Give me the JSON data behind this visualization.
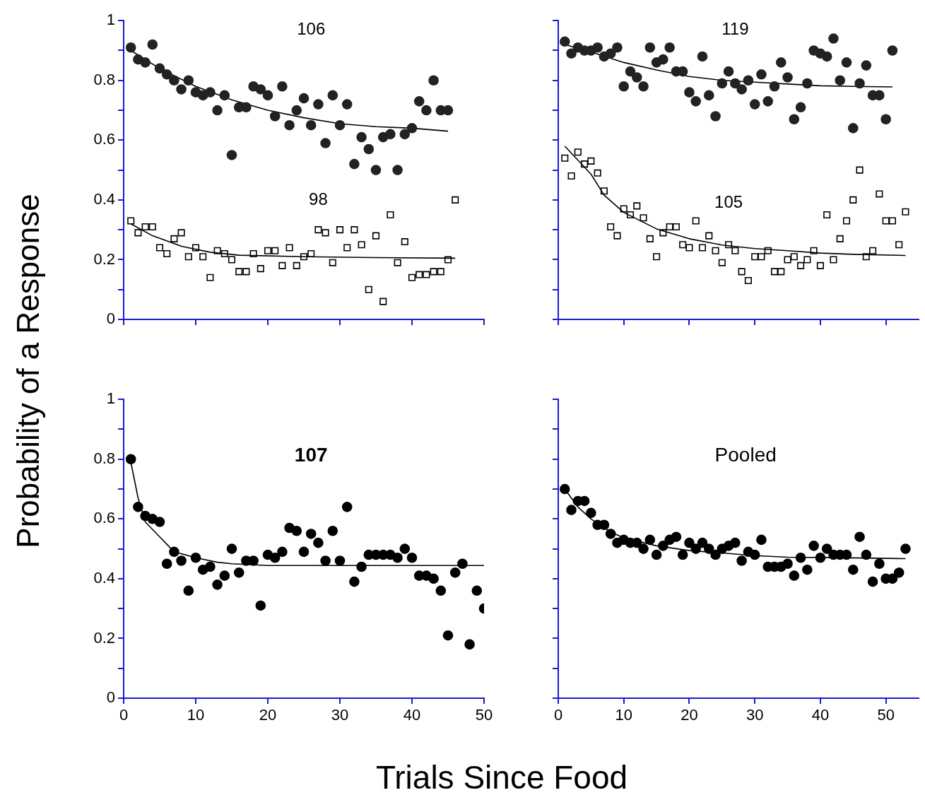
{
  "chart_data": [
    {
      "type": "scatter",
      "annotations": [
        "106",
        "98"
      ],
      "xlim": [
        0,
        50
      ],
      "ylim": [
        0,
        1
      ],
      "xticks": [
        0,
        10,
        20,
        30,
        40,
        50
      ],
      "yticks": [
        0,
        {
          "value": 0.1,
          "label": null
        },
        0.2,
        {
          "value": 0.3,
          "label": null
        },
        0.4,
        {
          "value": 0.5,
          "label": null
        },
        0.6,
        {
          "value": 0.7,
          "label": null
        },
        0.8,
        {
          "value": 0.9,
          "label": null
        },
        1
      ],
      "tick_labels": "y",
      "series": [
        {
          "marker": "circle",
          "color": "#222222",
          "x": [
            1,
            2,
            3,
            4,
            5,
            6,
            7,
            8,
            9,
            10,
            11,
            12,
            13,
            14,
            15,
            16,
            17,
            18,
            19,
            20,
            21,
            22,
            23,
            24,
            25,
            26,
            27,
            28,
            29,
            30,
            31,
            32,
            33,
            34,
            35,
            36,
            37,
            38,
            39,
            40,
            41,
            42,
            43,
            44,
            45
          ],
          "values": [
            0.91,
            0.87,
            0.86,
            0.92,
            0.84,
            0.82,
            0.8,
            0.77,
            0.8,
            0.76,
            0.75,
            0.76,
            0.7,
            0.75,
            0.55,
            0.71,
            0.71,
            0.78,
            0.77,
            0.75,
            0.68,
            0.78,
            0.65,
            0.7,
            0.74,
            0.65,
            0.72,
            0.59,
            0.75,
            0.65,
            0.72,
            0.52,
            0.61,
            0.57,
            0.5,
            0.61,
            0.62,
            0.5,
            0.62,
            0.64,
            0.73,
            0.7,
            0.8,
            0.7,
            0.7
          ]
        },
        {
          "type": "line",
          "marker": "none",
          "color": "#000000",
          "x": [
            1,
            5,
            10,
            15,
            20,
            25,
            30,
            35,
            40,
            45
          ],
          "values": [
            0.9,
            0.84,
            0.78,
            0.735,
            0.7,
            0.675,
            0.655,
            0.645,
            0.64,
            0.63
          ]
        },
        {
          "marker": "square",
          "color": "#000000",
          "x": [
            1,
            2,
            3,
            4,
            5,
            6,
            7,
            8,
            9,
            10,
            11,
            12,
            13,
            14,
            15,
            16,
            17,
            18,
            19,
            20,
            21,
            22,
            23,
            24,
            25,
            26,
            27,
            28,
            29,
            30,
            31,
            32,
            33,
            34,
            35,
            36,
            37,
            38,
            39,
            40,
            41,
            42,
            43,
            44,
            45,
            46
          ],
          "values": [
            0.33,
            0.29,
            0.31,
            0.31,
            0.24,
            0.22,
            0.27,
            0.29,
            0.21,
            0.24,
            0.21,
            0.14,
            0.23,
            0.22,
            0.2,
            0.16,
            0.16,
            0.22,
            0.17,
            0.23,
            0.23,
            0.18,
            0.24,
            0.18,
            0.21,
            0.22,
            0.3,
            0.29,
            0.19,
            0.3,
            0.24,
            0.3,
            0.25,
            0.1,
            0.28,
            0.06,
            0.35,
            0.19,
            0.26,
            0.14,
            0.15,
            0.15,
            0.16,
            0.16,
            0.2,
            0.4
          ]
        },
        {
          "type": "line",
          "marker": "none",
          "color": "#000000",
          "x": [
            1,
            4,
            8,
            12,
            16,
            25,
            35,
            46
          ],
          "values": [
            0.32,
            0.28,
            0.245,
            0.225,
            0.215,
            0.21,
            0.207,
            0.205
          ]
        }
      ]
    },
    {
      "type": "scatter",
      "annotations": [
        "119",
        "105"
      ],
      "xlim": [
        0,
        55
      ],
      "ylim": [
        0,
        1
      ],
      "xticks": [
        0,
        10,
        20,
        30,
        40,
        50
      ],
      "yticks": [
        0,
        0.1,
        0.2,
        0.3,
        0.4,
        0.5,
        0.6,
        0.7,
        0.8,
        0.9,
        1
      ],
      "tick_labels": false,
      "series": [
        {
          "marker": "circle",
          "color": "#222222",
          "x": [
            1,
            2,
            3,
            4,
            5,
            6,
            7,
            8,
            9,
            10,
            11,
            12,
            13,
            14,
            15,
            16,
            17,
            18,
            19,
            20,
            21,
            22,
            23,
            24,
            25,
            26,
            27,
            28,
            29,
            30,
            31,
            32,
            33,
            34,
            35,
            36,
            37,
            38,
            39,
            40,
            41,
            42,
            43,
            44,
            45,
            46,
            47,
            48,
            49,
            50,
            51
          ],
          "values": [
            0.93,
            0.89,
            0.91,
            0.9,
            0.9,
            0.91,
            0.88,
            0.89,
            0.91,
            0.78,
            0.83,
            0.81,
            0.78,
            0.91,
            0.86,
            0.87,
            0.91,
            0.83,
            0.83,
            0.76,
            0.73,
            0.88,
            0.75,
            0.68,
            0.79,
            0.83,
            0.79,
            0.77,
            0.8,
            0.72,
            0.82,
            0.73,
            0.78,
            0.86,
            0.81,
            0.67,
            0.71,
            0.79,
            0.9,
            0.89,
            0.88,
            0.94,
            0.8,
            0.86,
            0.64,
            0.79,
            0.85,
            0.75,
            0.75,
            0.67,
            0.9
          ]
        },
        {
          "type": "line",
          "marker": "none",
          "color": "#000000",
          "x": [
            1,
            5,
            10,
            15,
            20,
            25,
            30,
            35,
            40,
            45,
            51
          ],
          "values": [
            0.92,
            0.895,
            0.86,
            0.835,
            0.813,
            0.8,
            0.794,
            0.788,
            0.782,
            0.78,
            0.778
          ]
        },
        {
          "marker": "square",
          "color": "#000000",
          "x": [
            1,
            2,
            3,
            4,
            5,
            6,
            7,
            8,
            9,
            10,
            11,
            12,
            13,
            14,
            15,
            16,
            17,
            18,
            19,
            20,
            21,
            22,
            23,
            24,
            25,
            26,
            27,
            28,
            29,
            30,
            31,
            32,
            33,
            34,
            35,
            36,
            37,
            38,
            39,
            40,
            41,
            42,
            43,
            44,
            45,
            46,
            47,
            48,
            49,
            50,
            51,
            52,
            53
          ],
          "values": [
            0.54,
            0.48,
            0.56,
            0.52,
            0.53,
            0.49,
            0.43,
            0.31,
            0.28,
            0.37,
            0.35,
            0.38,
            0.34,
            0.27,
            0.21,
            0.29,
            0.31,
            0.31,
            0.25,
            0.24,
            0.33,
            0.24,
            0.28,
            0.23,
            0.19,
            0.25,
            0.23,
            0.16,
            0.13,
            0.21,
            0.21,
            0.23,
            0.16,
            0.16,
            0.2,
            0.21,
            0.18,
            0.2,
            0.23,
            0.18,
            0.35,
            0.2,
            0.27,
            0.33,
            0.4,
            0.5,
            0.21,
            0.23,
            0.42,
            0.33,
            0.33,
            0.25,
            0.36
          ]
        },
        {
          "type": "line",
          "marker": "none",
          "color": "#000000",
          "x": [
            1,
            5,
            7,
            10,
            15,
            20,
            25,
            30,
            35,
            40,
            45,
            53
          ],
          "values": [
            0.58,
            0.486,
            0.416,
            0.358,
            0.303,
            0.27,
            0.249,
            0.237,
            0.23,
            0.222,
            0.218,
            0.214
          ]
        }
      ]
    },
    {
      "type": "scatter",
      "title": "107",
      "xlabel": "Trials Since Food",
      "ylabel": "Probability of a Response",
      "xlim": [
        0,
        50
      ],
      "ylim": [
        0,
        1
      ],
      "xticks": [
        0,
        10,
        20,
        30,
        40,
        50
      ],
      "yticks": [
        0,
        {
          "value": 0.1,
          "label": null
        },
        0.2,
        {
          "value": 0.3,
          "label": null
        },
        0.4,
        {
          "value": 0.5,
          "label": null
        },
        0.6,
        {
          "value": 0.7,
          "label": null
        },
        0.8,
        {
          "value": 0.9,
          "label": null
        },
        1
      ],
      "series": [
        {
          "marker": "circle",
          "color": "#000000",
          "x": [
            1,
            2,
            3,
            4,
            5,
            6,
            7,
            8,
            9,
            10,
            11,
            12,
            13,
            14,
            15,
            16,
            17,
            18,
            19,
            20,
            21,
            22,
            23,
            24,
            25,
            26,
            27,
            28,
            29,
            30,
            31,
            32,
            33,
            34,
            35,
            36,
            37,
            38,
            39,
            40,
            41,
            42,
            43,
            44,
            45,
            46,
            47,
            48,
            49,
            50
          ],
          "values": [
            0.8,
            0.64,
            0.61,
            0.6,
            0.59,
            0.45,
            0.49,
            0.46,
            0.36,
            0.47,
            0.43,
            0.44,
            0.38,
            0.41,
            0.5,
            0.42,
            0.46,
            0.46,
            0.31,
            0.48,
            0.47,
            0.49,
            0.57,
            0.56,
            0.49,
            0.55,
            0.52,
            0.46,
            0.56,
            0.46,
            0.64,
            0.39,
            0.44,
            0.48,
            0.48,
            0.48,
            0.48,
            0.47,
            0.5,
            0.47,
            0.41,
            0.41,
            0.4,
            0.36,
            0.21,
            0.42,
            0.45,
            0.18,
            0.36,
            0.3
          ]
        },
        {
          "type": "line",
          "marker": "none",
          "color": "#000000",
          "x": [
            1,
            2,
            3,
            5,
            7,
            10,
            13,
            15,
            20,
            50
          ],
          "values": [
            0.79,
            0.67,
            0.59,
            0.54,
            0.49,
            0.47,
            0.455,
            0.45,
            0.444,
            0.444
          ]
        }
      ]
    },
    {
      "type": "scatter",
      "title": "Pooled",
      "xlim": [
        0,
        55
      ],
      "ylim": [
        0,
        1
      ],
      "xticks": [
        0,
        10,
        20,
        30,
        40,
        50
      ],
      "yticks": [
        0,
        0.1,
        0.2,
        0.3,
        0.4,
        0.5,
        0.6,
        0.7,
        0.8,
        0.9,
        1
      ],
      "tick_labels": "x",
      "series": [
        {
          "marker": "circle",
          "color": "#000000",
          "x": [
            1,
            2,
            3,
            4,
            5,
            6,
            7,
            8,
            9,
            10,
            11,
            12,
            13,
            14,
            15,
            16,
            17,
            18,
            19,
            20,
            21,
            22,
            23,
            24,
            25,
            26,
            27,
            28,
            29,
            30,
            31,
            32,
            33,
            34,
            35,
            36,
            37,
            38,
            39,
            40,
            41,
            42,
            43,
            44,
            45,
            46,
            47,
            48,
            49,
            50,
            51,
            52,
            53
          ],
          "values": [
            0.7,
            0.63,
            0.66,
            0.66,
            0.62,
            0.58,
            0.58,
            0.55,
            0.52,
            0.53,
            0.52,
            0.52,
            0.5,
            0.53,
            0.48,
            0.51,
            0.53,
            0.54,
            0.48,
            0.52,
            0.5,
            0.52,
            0.5,
            0.48,
            0.5,
            0.51,
            0.52,
            0.46,
            0.49,
            0.48,
            0.53,
            0.44,
            0.44,
            0.44,
            0.45,
            0.41,
            0.47,
            0.43,
            0.51,
            0.47,
            0.5,
            0.48,
            0.48,
            0.48,
            0.43,
            0.54,
            0.48,
            0.39,
            0.45,
            0.4,
            0.4,
            0.42,
            0.5
          ]
        },
        {
          "type": "line",
          "marker": "none",
          "color": "#000000",
          "x": [
            1,
            3,
            5,
            8,
            10,
            15,
            20,
            25,
            30,
            35,
            40,
            53
          ],
          "values": [
            0.7,
            0.64,
            0.6,
            0.556,
            0.537,
            0.51,
            0.494,
            0.486,
            0.477,
            0.472,
            0.471,
            0.467
          ]
        }
      ]
    }
  ]
}
